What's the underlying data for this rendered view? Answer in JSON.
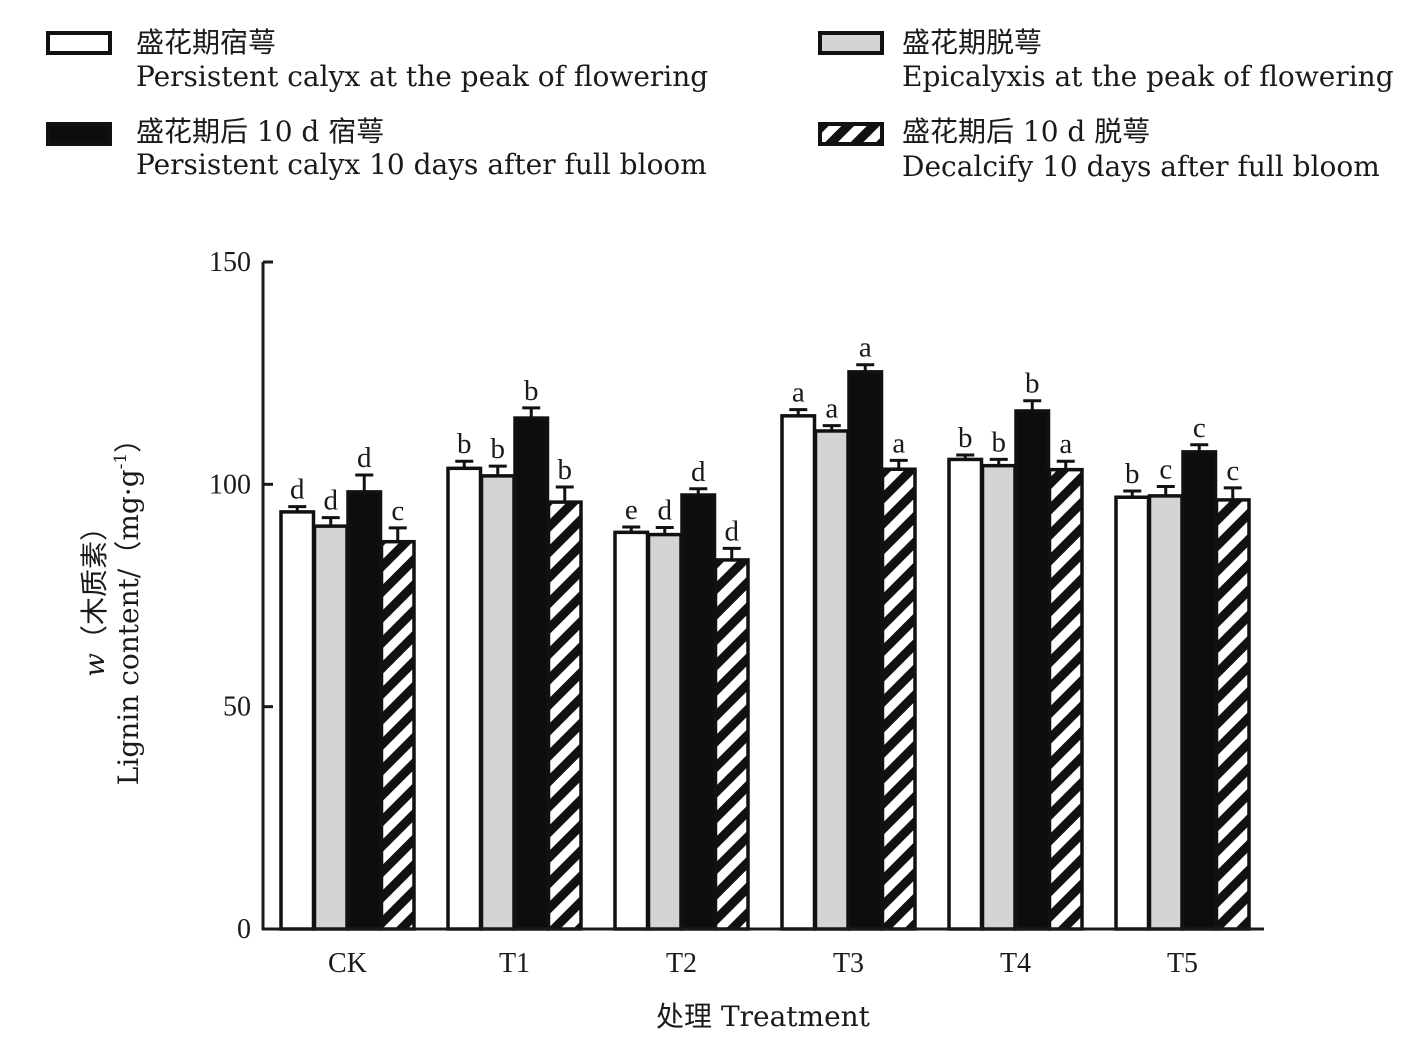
{
  "chart_data": {
    "type": "bar",
    "categories": [
      "CK",
      "T1",
      "T2",
      "T3",
      "T4",
      "T5"
    ],
    "xlabel": "处理 Treatment",
    "ylabel_cn_var": "w",
    "ylabel_cn_text": "（木质素）",
    "ylabel_en": "Lignin content/（mg·g",
    "ylabel_sup": "-1",
    "ylabel_close": "）",
    "ylim": [
      0,
      150
    ],
    "yticks": [
      0,
      50,
      100,
      150
    ],
    "grid": false,
    "legend_position": "top",
    "series": [
      {
        "name_cn": "盛花期宿萼",
        "name_en": "Persistent calyx at the peak of flowering",
        "fill": "#ffffff",
        "pattern": "solid",
        "values": [
          93.8,
          103.6,
          89.2,
          115.4,
          105.6,
          97.1
        ],
        "errors": [
          1.2,
          1.6,
          1.2,
          1.4,
          1.0,
          1.4
        ],
        "letters": [
          "d",
          "b",
          "e",
          "a",
          "b",
          "b"
        ]
      },
      {
        "name_cn": "盛花期脱萼",
        "name_en": "Epicalyxis at the peak of flowering",
        "fill": "#d4d4d4",
        "pattern": "solid",
        "values": [
          90.6,
          101.9,
          88.7,
          112.0,
          104.2,
          97.4
        ],
        "errors": [
          1.9,
          2.2,
          1.6,
          1.2,
          1.4,
          2.1
        ],
        "letters": [
          "d",
          "b",
          "d",
          "a",
          "b",
          "c"
        ]
      },
      {
        "name_cn": "盛花期后 10 d 宿萼",
        "name_en": "Persistent calyx 10 days after full bloom",
        "fill": "#0d0d0d",
        "pattern": "solid",
        "values": [
          98.3,
          114.9,
          97.6,
          125.3,
          116.5,
          107.3
        ],
        "errors": [
          3.8,
          2.3,
          1.4,
          1.6,
          2.3,
          1.6
        ],
        "letters": [
          "d",
          "b",
          "d",
          "a",
          "b",
          "c"
        ]
      },
      {
        "name_cn": "盛花期后 10 d 脱萼",
        "name_en": "Decalcify 10 days after full bloom",
        "fill": "#ffffff",
        "pattern": "hatch",
        "values": [
          87.1,
          96.0,
          83.0,
          103.4,
          103.3,
          96.5
        ],
        "errors": [
          3.1,
          3.4,
          2.6,
          2.0,
          1.9,
          2.7
        ],
        "letters": [
          "c",
          "b",
          "d",
          "a",
          "a",
          "c"
        ]
      }
    ]
  },
  "colors": {
    "axis": "#1a1a1a",
    "bar_outline": "#111111",
    "hatch_stripe": "#111111"
  }
}
